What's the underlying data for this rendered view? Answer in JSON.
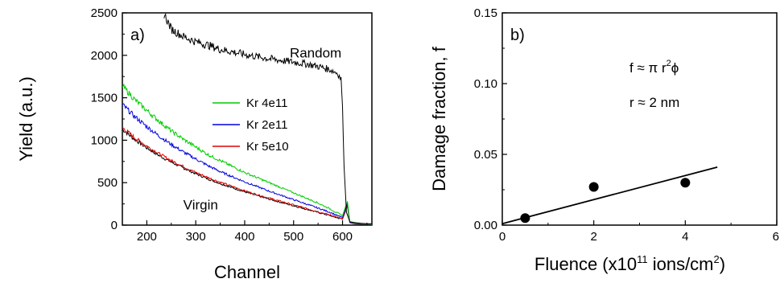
{
  "chart_data": [
    {
      "type": "line",
      "panel_label": "a)",
      "xlabel": "Channel",
      "ylabel": "Yield (a.u.)",
      "xlim": [
        150,
        660
      ],
      "ylim": [
        0,
        2500
      ],
      "xticks": [
        200,
        300,
        400,
        500,
        600
      ],
      "yticks": [
        0,
        500,
        1000,
        1500,
        2000,
        2500
      ],
      "legend_position": "center-right",
      "annotations": [
        {
          "text": "Random",
          "x": 545,
          "y": 1975
        },
        {
          "text": "Virgin",
          "x": 310,
          "y": 185
        }
      ],
      "series": [
        {
          "name": "",
          "label": "Random",
          "color": "#000000",
          "x": [
            235,
            250,
            275,
            300,
            325,
            350,
            375,
            400,
            425,
            450,
            475,
            500,
            525,
            550,
            575,
            590,
            597,
            600,
            603,
            608,
            615,
            625,
            640,
            660
          ],
          "y": [
            2490,
            2310,
            2220,
            2160,
            2120,
            2070,
            2040,
            2010,
            1985,
            1960,
            1940,
            1920,
            1900,
            1870,
            1830,
            1790,
            1720,
            1400,
            700,
            150,
            40,
            30,
            20,
            15
          ]
        },
        {
          "name": "Kr 4e11",
          "color": "#00cc00",
          "x": [
            150,
            175,
            200,
            225,
            250,
            275,
            300,
            325,
            350,
            375,
            400,
            425,
            450,
            475,
            500,
            525,
            550,
            575,
            590,
            600,
            605,
            610,
            615,
            625,
            640,
            660
          ],
          "y": [
            1640,
            1480,
            1350,
            1225,
            1110,
            1010,
            920,
            830,
            760,
            690,
            620,
            560,
            500,
            440,
            380,
            320,
            260,
            190,
            140,
            110,
            200,
            280,
            40,
            25,
            15,
            10
          ]
        },
        {
          "name": "Kr 2e11",
          "color": "#0000dd",
          "x": [
            150,
            175,
            200,
            225,
            250,
            275,
            300,
            325,
            350,
            375,
            400,
            425,
            450,
            475,
            500,
            525,
            550,
            575,
            590,
            600,
            605,
            610,
            615,
            625,
            640,
            660
          ],
          "y": [
            1420,
            1280,
            1160,
            1050,
            950,
            860,
            780,
            700,
            630,
            570,
            510,
            455,
            400,
            350,
            300,
            250,
            200,
            150,
            110,
            90,
            180,
            260,
            35,
            20,
            12,
            8
          ]
        },
        {
          "name": "Kr 5e10",
          "color": "#dd0000",
          "x": [
            150,
            175,
            200,
            225,
            250,
            275,
            300,
            325,
            350,
            375,
            400,
            425,
            450,
            475,
            500,
            525,
            550,
            575,
            590,
            600,
            605,
            610,
            615,
            625,
            640,
            660
          ],
          "y": [
            1150,
            1030,
            930,
            840,
            760,
            690,
            620,
            560,
            505,
            455,
            405,
            360,
            318,
            278,
            238,
            198,
            158,
            118,
            90,
            75,
            160,
            240,
            30,
            18,
            10,
            6
          ]
        },
        {
          "name": "",
          "label": "Virgin",
          "color": "#000000",
          "x": [
            150,
            175,
            200,
            225,
            250,
            275,
            300,
            325,
            350,
            375,
            400,
            425,
            450,
            475,
            500,
            525,
            550,
            575,
            590,
            600,
            605,
            610,
            615,
            625,
            640,
            660
          ],
          "y": [
            1130,
            1010,
            910,
            820,
            742,
            672,
            605,
            545,
            490,
            440,
            392,
            348,
            306,
            267,
            228,
            190,
            150,
            112,
            85,
            70,
            150,
            230,
            28,
            16,
            8,
            5
          ]
        }
      ]
    },
    {
      "type": "scatter",
      "panel_label": "b)",
      "xlabel": "Fluence (x10",
      "xlabel_sup": "11",
      "xlabel_rest": " ions/cm",
      "xlabel_sup2": "2",
      "xlabel_end": ")",
      "ylabel": "Damage fraction, f",
      "xlim": [
        0,
        6
      ],
      "ylim": [
        0,
        0.15
      ],
      "xticks": [
        0,
        2,
        4,
        6
      ],
      "xtick_labels": [
        "0",
        "2",
        "4",
        "6"
      ],
      "yticks": [
        0,
        0.05,
        0.1,
        0.15
      ],
      "ytick_labels": [
        "0.00",
        "0.05",
        "0.10",
        "0.15"
      ],
      "formula_parts": [
        "f ≈ π r",
        "2",
        "ϕ"
      ],
      "radius_text": "r ≈ 2 nm",
      "points": {
        "x": [
          0.5,
          2,
          4
        ],
        "y": [
          0.005,
          0.027,
          0.03
        ]
      },
      "fit_line": {
        "x": [
          0,
          4.7
        ],
        "y": [
          0.001,
          0.041
        ]
      }
    }
  ]
}
